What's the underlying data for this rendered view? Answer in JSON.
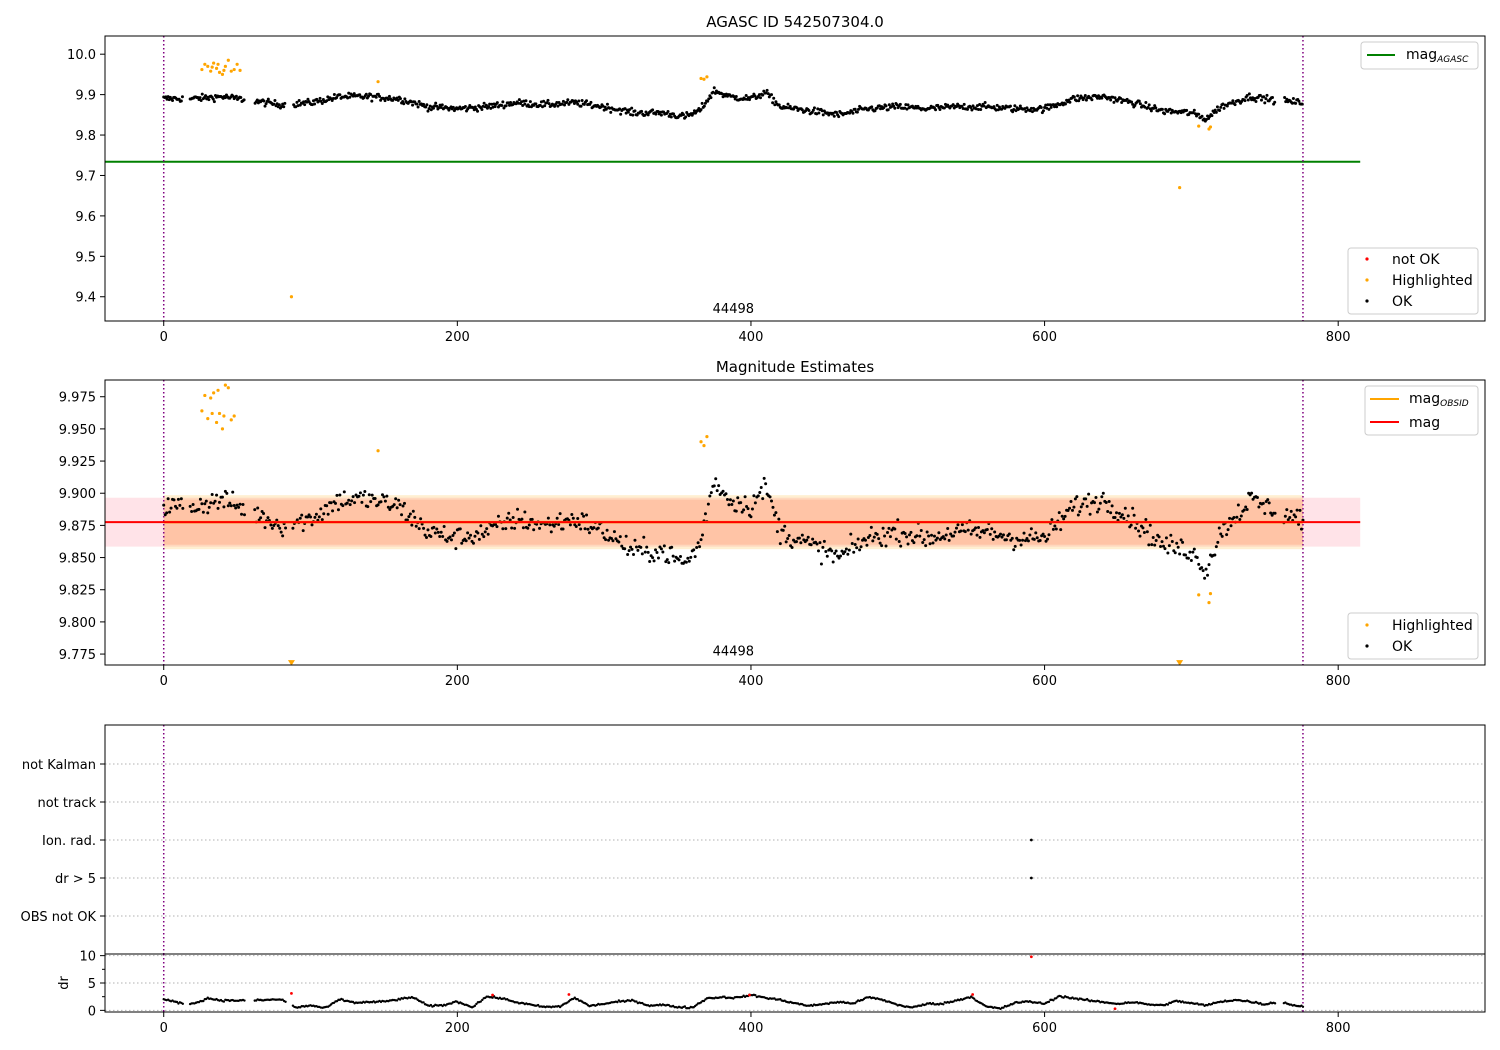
{
  "chart_data": [
    {
      "type": "scatter",
      "title": "AGASC ID 542507304.0",
      "xlim": [
        -40,
        900
      ],
      "ylim": [
        9.34,
        10.045
      ],
      "xticks": [
        0,
        200,
        400,
        600,
        800
      ],
      "yticks": [
        9.4,
        9.5,
        9.6,
        9.7,
        9.8,
        9.9,
        10.0
      ],
      "ytick_labels": [
        "9.4",
        "9.5",
        "9.6",
        "9.7",
        "9.8",
        "9.9",
        "10.0"
      ],
      "obsid_label": "44498",
      "obsid_label_x": 388,
      "obsid_label_y": 9.36,
      "vlines": [
        0,
        776
      ],
      "lines": [
        {
          "name": "mag_AGASC",
          "legend_main": "mag",
          "legend_sub": "AGASC",
          "color": "#008000",
          "y": 9.734,
          "x": [
            -40,
            815
          ]
        }
      ],
      "series_style": [
        {
          "name": "not OK",
          "color": "#ff0000"
        },
        {
          "name": "Highlighted",
          "color": "#ffa500"
        },
        {
          "name": "OK",
          "color": "#000000"
        }
      ],
      "profile": {
        "x": [
          0,
          20,
          40,
          60,
          80,
          100,
          120,
          140,
          160,
          180,
          200,
          220,
          240,
          260,
          280,
          300,
          320,
          340,
          355,
          365,
          375,
          385,
          400,
          410,
          420,
          440,
          460,
          480,
          500,
          520,
          540,
          560,
          580,
          600,
          620,
          640,
          660,
          680,
          700,
          710,
          720,
          740,
          760,
          776
        ],
        "y": [
          9.89,
          9.89,
          9.895,
          9.885,
          9.875,
          9.88,
          9.895,
          9.895,
          9.89,
          9.87,
          9.865,
          9.87,
          9.88,
          9.875,
          9.88,
          9.87,
          9.855,
          9.855,
          9.845,
          9.86,
          9.91,
          9.895,
          9.89,
          9.905,
          9.87,
          9.86,
          9.85,
          9.865,
          9.87,
          9.865,
          9.87,
          9.87,
          9.865,
          9.865,
          9.89,
          9.895,
          9.88,
          9.86,
          9.855,
          9.84,
          9.87,
          9.895,
          9.885,
          9.88
        ],
        "noise": 0.008,
        "step": 0.75
      },
      "highlighted_points": [
        {
          "x": 26,
          "y": 9.962
        },
        {
          "x": 28,
          "y": 9.975
        },
        {
          "x": 30,
          "y": 9.97
        },
        {
          "x": 32,
          "y": 9.958
        },
        {
          "x": 33,
          "y": 9.968
        },
        {
          "x": 34,
          "y": 9.978
        },
        {
          "x": 36,
          "y": 9.965
        },
        {
          "x": 37,
          "y": 9.975
        },
        {
          "x": 38,
          "y": 9.955
        },
        {
          "x": 40,
          "y": 9.95
        },
        {
          "x": 41,
          "y": 9.96
        },
        {
          "x": 42,
          "y": 9.97
        },
        {
          "x": 44,
          "y": 9.985
        },
        {
          "x": 46,
          "y": 9.958
        },
        {
          "x": 48,
          "y": 9.962
        },
        {
          "x": 50,
          "y": 9.975
        },
        {
          "x": 52,
          "y": 9.96
        },
        {
          "x": 87,
          "y": 9.4
        },
        {
          "x": 146,
          "y": 9.932
        },
        {
          "x": 366,
          "y": 9.94
        },
        {
          "x": 368,
          "y": 9.938
        },
        {
          "x": 370,
          "y": 9.944
        },
        {
          "x": 692,
          "y": 9.67
        },
        {
          "x": 705,
          "y": 9.822
        },
        {
          "x": 712,
          "y": 9.815
        },
        {
          "x": 713,
          "y": 9.82
        }
      ],
      "legend_points": [
        "not OK",
        "Highlighted",
        "OK"
      ]
    },
    {
      "type": "scatter",
      "title": "Magnitude Estimates",
      "xlim": [
        -40,
        900
      ],
      "ylim": [
        9.7665,
        9.988
      ],
      "xticks": [
        0,
        200,
        400,
        600,
        800
      ],
      "yticks": [
        9.775,
        9.8,
        9.825,
        9.85,
        9.875,
        9.9,
        9.925,
        9.95,
        9.975
      ],
      "ytick_labels": [
        "9.775",
        "9.800",
        "9.825",
        "9.850",
        "9.875",
        "9.900",
        "9.925",
        "9.950",
        "9.975"
      ],
      "obsid_label": "44498",
      "obsid_label_x": 388,
      "obsid_label_y": 9.774,
      "vlines": [
        0,
        776
      ],
      "bands": [
        {
          "x": [
            -40,
            815
          ],
          "y": [
            9.8585,
            9.8965
          ],
          "color": "#ffc0cb",
          "opacity": 0.45
        },
        {
          "x": [
            0,
            776
          ],
          "y": [
            9.8565,
            9.8985
          ],
          "color": "#ffa500",
          "opacity": 0.18
        },
        {
          "x": [
            0,
            776
          ],
          "y": [
            9.86,
            9.895
          ],
          "color": "#ff7f50",
          "opacity": 0.22
        }
      ],
      "lines": [
        {
          "name": "mag_OBSID",
          "legend_main": "mag",
          "legend_sub": "OBSID",
          "color": "#ffa500",
          "y": 9.8775,
          "x": [
            0,
            776
          ]
        },
        {
          "name": "mag",
          "legend_main": "mag",
          "legend_sub": "",
          "color": "#ff0000",
          "y": 9.8775,
          "x": [
            -40,
            815
          ]
        }
      ],
      "profile": {
        "x": [
          0,
          20,
          40,
          60,
          80,
          100,
          120,
          140,
          160,
          180,
          200,
          220,
          240,
          260,
          280,
          300,
          320,
          340,
          355,
          365,
          375,
          385,
          400,
          410,
          420,
          440,
          460,
          480,
          500,
          520,
          540,
          560,
          580,
          600,
          620,
          640,
          660,
          680,
          700,
          710,
          720,
          740,
          760,
          776
        ],
        "y": [
          9.89,
          9.89,
          9.895,
          9.885,
          9.875,
          9.88,
          9.895,
          9.895,
          9.89,
          9.87,
          9.865,
          9.87,
          9.88,
          9.875,
          9.88,
          9.87,
          9.855,
          9.855,
          9.845,
          9.86,
          9.91,
          9.895,
          9.89,
          9.905,
          9.87,
          9.86,
          9.85,
          9.865,
          9.87,
          9.865,
          9.87,
          9.87,
          9.865,
          9.865,
          9.89,
          9.895,
          9.88,
          9.86,
          9.855,
          9.84,
          9.87,
          9.895,
          9.885,
          9.88
        ],
        "noise": 0.008,
        "step": 1.0
      },
      "highlighted_points": [
        {
          "x": 26,
          "y": 9.964
        },
        {
          "x": 28,
          "y": 9.976
        },
        {
          "x": 30,
          "y": 9.958
        },
        {
          "x": 32,
          "y": 9.974
        },
        {
          "x": 33,
          "y": 9.962
        },
        {
          "x": 34,
          "y": 9.978
        },
        {
          "x": 36,
          "y": 9.955
        },
        {
          "x": 37,
          "y": 9.98
        },
        {
          "x": 38,
          "y": 9.962
        },
        {
          "x": 40,
          "y": 9.95
        },
        {
          "x": 41,
          "y": 9.96
        },
        {
          "x": 42,
          "y": 9.984
        },
        {
          "x": 44,
          "y": 9.982
        },
        {
          "x": 46,
          "y": 9.957
        },
        {
          "x": 48,
          "y": 9.96
        },
        {
          "x": 146,
          "y": 9.933
        },
        {
          "x": 366,
          "y": 9.94
        },
        {
          "x": 368,
          "y": 9.937
        },
        {
          "x": 370,
          "y": 9.944
        },
        {
          "x": 705,
          "y": 9.821
        },
        {
          "x": 712,
          "y": 9.815
        },
        {
          "x": 713,
          "y": 9.822
        }
      ],
      "clipped_markers": [
        {
          "x": 87,
          "y": 9.768
        },
        {
          "x": 692,
          "y": 9.768
        }
      ],
      "legend_points": [
        "Highlighted",
        "OK"
      ]
    },
    {
      "type": "scatter",
      "title": "",
      "xlim": [
        -40,
        900
      ],
      "categories": [
        "OBS not OK",
        "dr > 5",
        "Ion. rad.",
        "not track",
        "not Kalman"
      ],
      "vlines": [
        0,
        776
      ],
      "flag_points": [
        {
          "x": 591,
          "category": "Ion. rad."
        },
        {
          "x": 591,
          "category": "dr > 5"
        }
      ]
    },
    {
      "type": "scatter",
      "title": "",
      "ylabel": "dr",
      "xlim": [
        -40,
        900
      ],
      "ylim": [
        -0.3,
        10.3
      ],
      "xticks": [
        0,
        200,
        400,
        600,
        800
      ],
      "yticks": [
        0,
        5,
        10
      ],
      "minor_yticks": [
        2.5,
        7.5
      ],
      "vlines": [
        0,
        776
      ],
      "profile": {
        "x": [
          0,
          10,
          20,
          30,
          40,
          50,
          60,
          70,
          80,
          90,
          100,
          110,
          120,
          130,
          140,
          150,
          160,
          170,
          180,
          190,
          200,
          210,
          220,
          230,
          240,
          250,
          260,
          270,
          280,
          290,
          300,
          310,
          320,
          330,
          340,
          350,
          360,
          370,
          380,
          390,
          400,
          410,
          420,
          430,
          440,
          450,
          460,
          470,
          480,
          490,
          500,
          510,
          520,
          530,
          540,
          550,
          560,
          570,
          580,
          590,
          600,
          610,
          620,
          630,
          640,
          650,
          660,
          670,
          680,
          690,
          700,
          710,
          720,
          730,
          740,
          750,
          760,
          770,
          776
        ],
        "y": [
          2.0,
          1.4,
          1.2,
          2.2,
          1.8,
          1.8,
          1.8,
          1.9,
          2.0,
          0.5,
          0.9,
          0.4,
          2.0,
          1.4,
          1.5,
          1.6,
          2.0,
          2.4,
          0.8,
          0.9,
          1.6,
          0.6,
          2.5,
          2.2,
          1.5,
          1.0,
          0.6,
          0.7,
          2.3,
          0.8,
          1.2,
          1.6,
          1.8,
          0.9,
          1.0,
          0.6,
          0.5,
          2.2,
          2.4,
          2.3,
          2.8,
          2.3,
          1.9,
          1.3,
          0.8,
          1.2,
          1.5,
          1.3,
          2.4,
          1.9,
          1.0,
          0.5,
          1.2,
          1.2,
          1.8,
          2.5,
          0.7,
          0.3,
          1.4,
          1.6,
          1.2,
          2.6,
          2.2,
          1.8,
          1.5,
          1.2,
          1.5,
          1.1,
          0.9,
          1.7,
          1.3,
          0.9,
          1.6,
          1.9,
          1.6,
          1.1,
          1.6,
          0.9,
          0.7
        ],
        "noise": 0.15,
        "step": 1.0
      },
      "red_points": [
        {
          "x": 87,
          "y": 3.1
        },
        {
          "x": 224,
          "y": 2.8
        },
        {
          "x": 276,
          "y": 2.9
        },
        {
          "x": 399,
          "y": 2.8
        },
        {
          "x": 551,
          "y": 2.9
        },
        {
          "x": 591,
          "y": 9.8
        },
        {
          "x": 648,
          "y": 0.3
        }
      ]
    }
  ]
}
